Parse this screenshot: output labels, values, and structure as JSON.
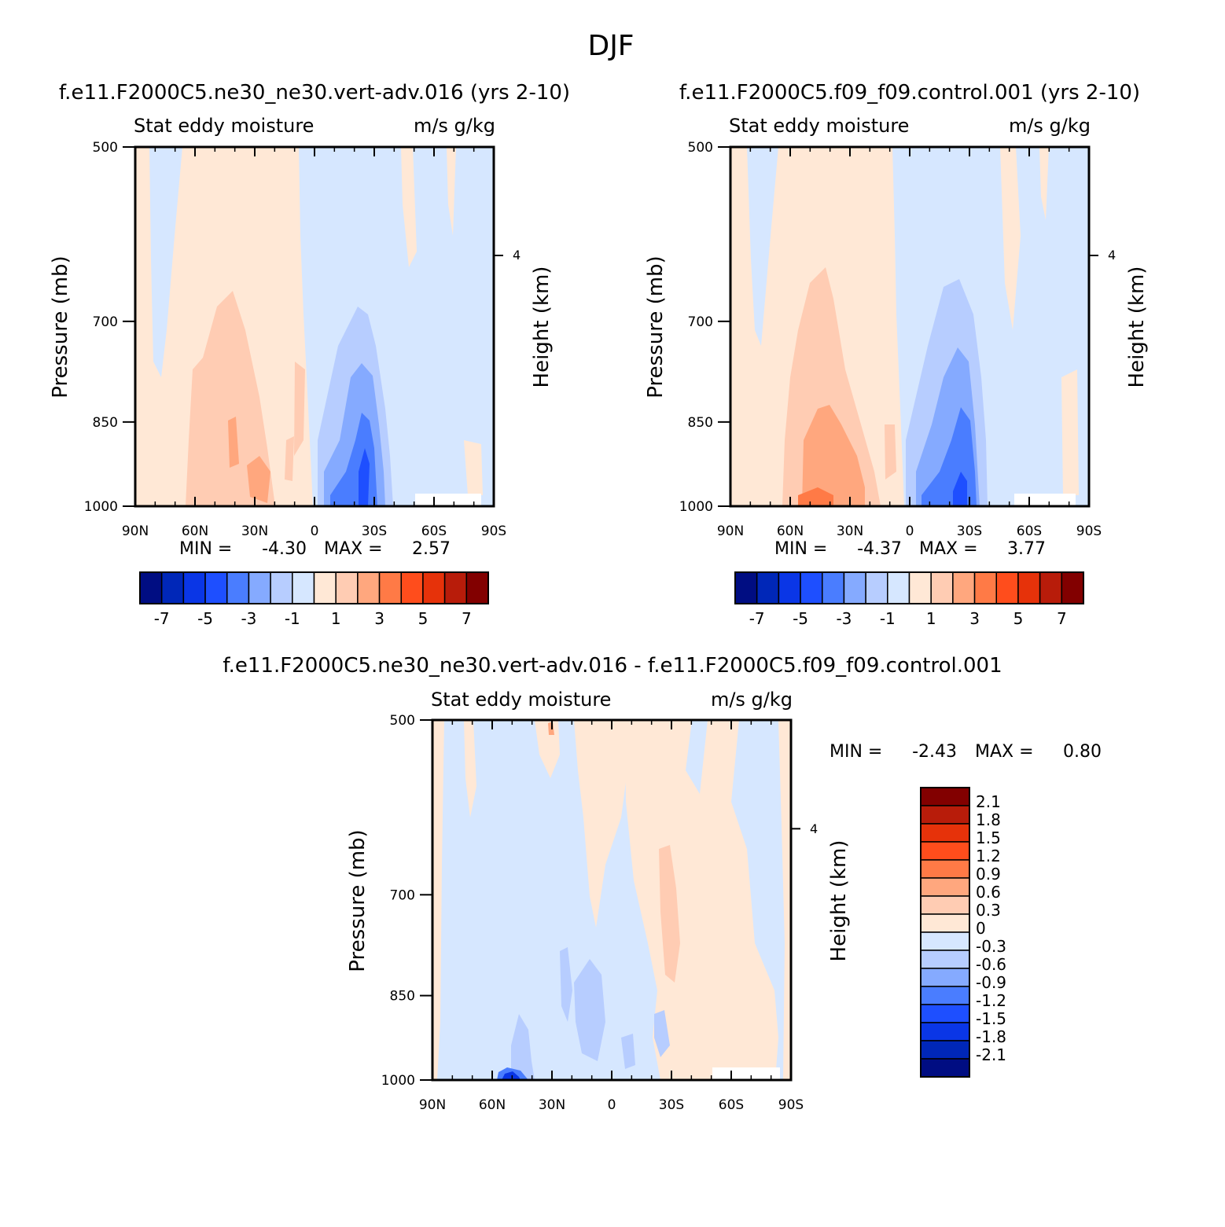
{
  "page": {
    "title": "DJF"
  },
  "colors": {
    "ab_levels": [
      "#000d82",
      "#0027b8",
      "#0a36e6",
      "#1e4fff",
      "#4a7dff",
      "#85aaff",
      "#b7cdff",
      "#d6e7ff",
      "#ffe8d6",
      "#ffccb3",
      "#ffa77e",
      "#ff7a46",
      "#ff4d1c",
      "#e6320a",
      "#b81c0a",
      "#820000"
    ],
    "diff_levels": [
      "#000d82",
      "#0027b8",
      "#0a36e6",
      "#1e4fff",
      "#4a7dff",
      "#85aaff",
      "#b7cdff",
      "#d6e7ff",
      "#ffe8d6",
      "#ffccb3",
      "#ffa77e",
      "#ff7a46",
      "#ff4d1c",
      "#e6320a",
      "#b81c0a",
      "#820000"
    ]
  },
  "panels": [
    {
      "id": "a",
      "case_title": "f.e11.F2000C5.ne30_ne30.vert-adv.016 (yrs 2-10)",
      "var_label": "Stat eddy moisture",
      "units": "m/s g/kg",
      "ylabel": "Pressure (mb)",
      "ylabel_right": "Height (km)",
      "height_tick": "4",
      "min_label": "MIN =",
      "min_value": "-4.30",
      "max_label": "MAX =",
      "max_value": "2.57"
    },
    {
      "id": "b",
      "case_title": "f.e11.F2000C5.f09_f09.control.001 (yrs 2-10)",
      "var_label": "Stat eddy moisture",
      "units": "m/s g/kg",
      "ylabel": "Pressure (mb)",
      "ylabel_right": "Height (km)",
      "height_tick": "4",
      "min_label": "MIN =",
      "min_value": "-4.37",
      "max_label": "MAX =",
      "max_value": "3.77"
    },
    {
      "id": "diff",
      "case_title": "f.e11.F2000C5.ne30_ne30.vert-adv.016 - f.e11.F2000C5.f09_f09.control.001",
      "var_label": "Stat eddy moisture",
      "units": "m/s g/kg",
      "ylabel": "Pressure (mb)",
      "ylabel_right": "Height (km)",
      "height_tick": "4",
      "min_label": "MIN =",
      "min_value": "-2.43",
      "max_label": "MAX =",
      "max_value": "0.80"
    }
  ],
  "colorbars": {
    "ab_labels": [
      "-7",
      "-5",
      "-3",
      "-1",
      "1",
      "3",
      "5",
      "7"
    ],
    "diff_labels": [
      "2.1",
      "1.8",
      "1.5",
      "1.2",
      "0.9",
      "0.6",
      "0.3",
      "0",
      "-0.3",
      "-0.6",
      "-0.9",
      "-1.2",
      "-1.5",
      "-1.8",
      "-2.1"
    ]
  },
  "chart_data": [
    {
      "type": "heatmap",
      "title": "f.e11.F2000C5.ne30_ne30.vert-adv.016 (yrs 2-10)",
      "subtitle": "Stat eddy moisture",
      "units": "m/s g/kg",
      "xlabel": "",
      "ylabel": "Pressure (mb)",
      "x_ticks": [
        "90N",
        "60N",
        "30N",
        "0",
        "30S",
        "60S",
        "90S"
      ],
      "y_ticks": [
        500,
        700,
        850,
        1000
      ],
      "xlim": [
        90,
        -90
      ],
      "ylim": [
        1000,
        500
      ],
      "y_scale": "log",
      "contour_levels": [
        -7,
        -6,
        -5,
        -4,
        -3,
        -2,
        -1,
        0,
        1,
        2,
        3,
        4,
        5,
        6,
        7
      ],
      "min": -4.3,
      "max": 2.57,
      "features": [
        {
          "lat": 30,
          "p_top": 720,
          "p_bottom": 1000,
          "value": -3.5
        },
        {
          "lat": 45,
          "p_top": 740,
          "p_bottom": 1000,
          "value": 1.5
        }
      ]
    },
    {
      "type": "heatmap",
      "title": "f.e11.F2000C5.f09_f09.control.001 (yrs 2-10)",
      "subtitle": "Stat eddy moisture",
      "units": "m/s g/kg",
      "xlabel": "",
      "ylabel": "Pressure (mb)",
      "x_ticks": [
        "90N",
        "60N",
        "30N",
        "0",
        "30S",
        "60S",
        "90S"
      ],
      "y_ticks": [
        500,
        700,
        850,
        1000
      ],
      "xlim": [
        90,
        -90
      ],
      "ylim": [
        1000,
        500
      ],
      "y_scale": "log",
      "contour_levels": [
        -7,
        -6,
        -5,
        -4,
        -3,
        -2,
        -1,
        0,
        1,
        2,
        3,
        4,
        5,
        6,
        7
      ],
      "min": -4.37,
      "max": 3.77,
      "features": [
        {
          "lat": -28,
          "p_top": 680,
          "p_bottom": 1000,
          "value": -3.5
        },
        {
          "lat": 40,
          "p_top": 660,
          "p_bottom": 1000,
          "value": 2.0
        }
      ]
    },
    {
      "type": "heatmap",
      "title": "f.e11.F2000C5.ne30_ne30.vert-adv.016 - f.e11.F2000C5.f09_f09.control.001",
      "subtitle": "Stat eddy moisture",
      "units": "m/s g/kg",
      "xlabel": "",
      "ylabel": "Pressure (mb)",
      "x_ticks": [
        "90N",
        "60N",
        "30N",
        "0",
        "30S",
        "60S",
        "90S"
      ],
      "y_ticks": [
        500,
        700,
        850,
        1000
      ],
      "xlim": [
        90,
        -90
      ],
      "ylim": [
        1000,
        500
      ],
      "y_scale": "log",
      "contour_levels": [
        -2.1,
        -1.8,
        -1.5,
        -1.2,
        -0.9,
        -0.6,
        -0.3,
        0,
        0.3,
        0.6,
        0.9,
        1.2,
        1.5,
        1.8,
        2.1
      ],
      "min": -2.43,
      "max": 0.8,
      "features": [
        {
          "lat": 57,
          "p_top": 990,
          "p_bottom": 1000,
          "value": -2.3
        },
        {
          "lat": -33,
          "p_top": 610,
          "p_bottom": 820,
          "value": 0.5
        }
      ]
    }
  ]
}
